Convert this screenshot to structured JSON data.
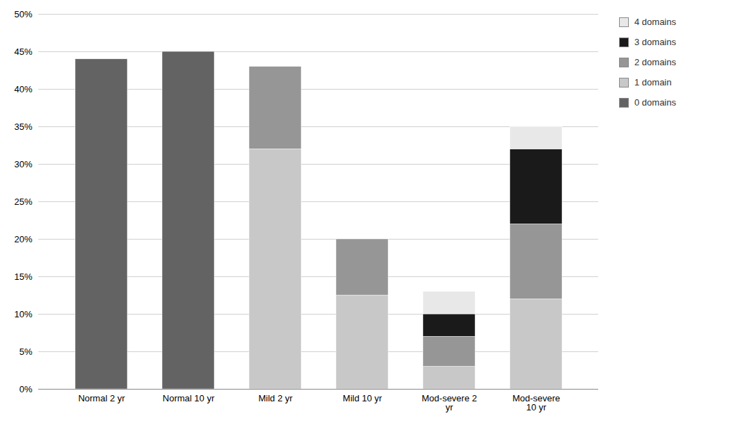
{
  "chart_data": {
    "type": "bar",
    "stacked": true,
    "categories": [
      "Normal 2 yr",
      "Normal 10 yr",
      "Mild 2 yr",
      "Mild 10 yr",
      "Mod-severe 2\nyr",
      "Mod-severe\n10 yr"
    ],
    "series": [
      {
        "name": "0 domains",
        "color": "#636363",
        "values": [
          0.44,
          0.45,
          0.0,
          0.0,
          0.0,
          0.0
        ]
      },
      {
        "name": "1 domain",
        "color": "#c8c8c8",
        "values": [
          0.0,
          0.0,
          0.32,
          0.125,
          0.03,
          0.12
        ]
      },
      {
        "name": "2 domains",
        "color": "#969696",
        "values": [
          0.0,
          0.0,
          0.11,
          0.075,
          0.04,
          0.1
        ]
      },
      {
        "name": "3 domains",
        "color": "#1a1a1a",
        "values": [
          0.0,
          0.0,
          0.0,
          0.0,
          0.03,
          0.1
        ]
      },
      {
        "name": "4 domains",
        "color": "#e8e8e8",
        "values": [
          0.0,
          0.0,
          0.0,
          0.0,
          0.03,
          0.03
        ]
      }
    ],
    "ylim": [
      0,
      0.5
    ],
    "yticks": [
      {
        "value": 0.0,
        "label": "0%"
      },
      {
        "value": 0.05,
        "label": "5%"
      },
      {
        "value": 0.1,
        "label": "10%"
      },
      {
        "value": 0.15,
        "label": "15%"
      },
      {
        "value": 0.2,
        "label": "20%"
      },
      {
        "value": 0.25,
        "label": "25%"
      },
      {
        "value": 0.3,
        "label": "30%"
      },
      {
        "value": 0.35,
        "label": "35%"
      },
      {
        "value": 0.4,
        "label": "40%"
      },
      {
        "value": 0.45,
        "label": "45%"
      },
      {
        "value": 0.5,
        "label": "50%"
      }
    ],
    "grid": true,
    "legend": "right"
  }
}
